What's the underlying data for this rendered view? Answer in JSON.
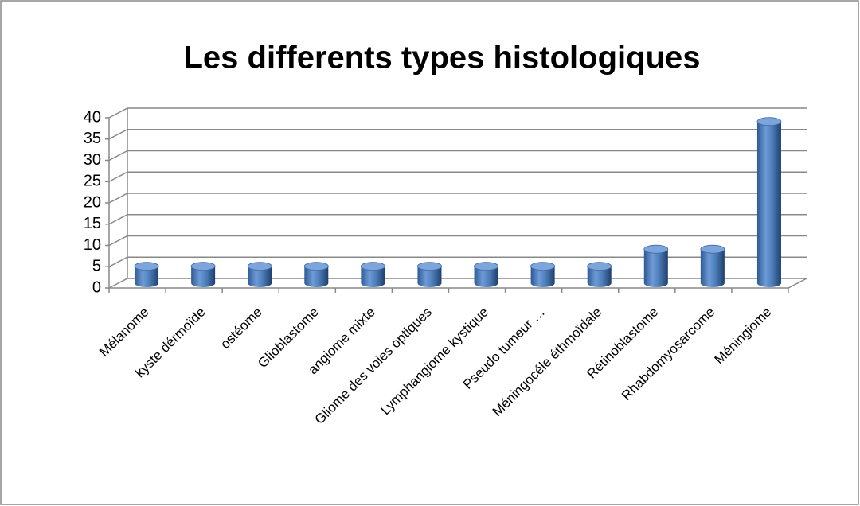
{
  "chart_data": {
    "type": "bar",
    "title": "Les differents types histologiques",
    "categories": [
      "Mélanome",
      "kyste dérmoïde",
      "ostéome",
      "Glioblastome",
      "angiome mixte",
      "Gliome des voies optiques",
      "Lymphangiome kystique",
      "Pseudo tumeur …",
      "Méningocéle éthmoïdale",
      "Rétinoblastome",
      "Rhabdomyosarcome",
      "Méningiome"
    ],
    "values": [
      4,
      4,
      4,
      4,
      4,
      4,
      4,
      4,
      4,
      8,
      8,
      38
    ],
    "color": "#4f81bd",
    "ylim": [
      0,
      40
    ],
    "yticks": [
      0,
      5,
      10,
      15,
      20,
      25,
      30,
      35,
      40
    ],
    "grid": true
  }
}
